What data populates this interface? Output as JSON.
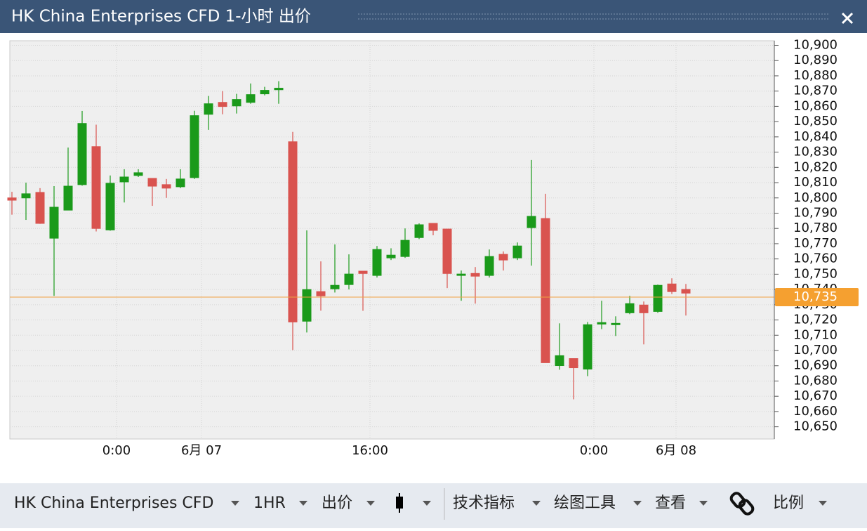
{
  "window": {
    "title": "HK China Enterprises CFD 1-小时 出价"
  },
  "chart_data": {
    "type": "candlestick",
    "open": [
      10800,
      10800,
      10803.6,
      10773.6,
      10792,
      10808.7,
      10833.6,
      10779,
      10810.5,
      10814.7,
      10812.8,
      10808.7,
      10807.3,
      10813.3,
      10854.8,
      10862.6,
      10860.3,
      10862.6,
      10868.2,
      10870.9,
      10836.8,
      10719.2,
      10738.6,
      10740.4,
      10743.2,
      10752,
      10749.2,
      10760.7,
      10761.6,
      10774,
      10783.3,
      10779.6,
      10749.2,
      10750.5,
      10749.2,
      10763,
      10760.7,
      10780.5,
      10786.5,
      10690.1,
      10694.7,
      10687.8,
      10717.3,
      10716.9,
      10724.7,
      10729.8,
      10725.6,
      10743.6,
      10740
    ],
    "high": [
      10804,
      10810,
      10806.4,
      10807.7,
      10833,
      10857,
      10848,
      10814.7,
      10818.8,
      10818.8,
      10813,
      10812.4,
      10818.8,
      10857.1,
      10866.8,
      10870,
      10868.2,
      10875,
      10872.8,
      10876.5,
      10843.3,
      10778.7,
      10758.4,
      10769.5,
      10763,
      10752,
      10768.5,
      10767,
      10780,
      10783.3,
      10783.3,
      10779.6,
      10752.4,
      10754.7,
      10766.2,
      10764.9,
      10770.8,
      10824.8,
      10802.7,
      10717.8,
      10694.7,
      10718.7,
      10732.6,
      10722.4,
      10735.8,
      10732.1,
      10743.2,
      10747.3,
      10743.6
    ],
    "low": [
      10789,
      10785.6,
      10783,
      10735.8,
      10792,
      10808,
      10778,
      10778.5,
      10797,
      10813.7,
      10794.8,
      10800,
      10806.4,
      10812.4,
      10844.6,
      10854.8,
      10855.3,
      10861.7,
      10867.2,
      10861.7,
      10700.3,
      10711.8,
      10726.1,
      10738,
      10740,
      10726,
      10747.8,
      10759.3,
      10760.7,
      10773,
      10775.5,
      10740.9,
      10732.6,
      10730.7,
      10747.8,
      10752.4,
      10759.3,
      10755.6,
      10692,
      10687.4,
      10668,
      10683.2,
      10714,
      10709.5,
      10723.8,
      10704,
      10724.7,
      10737,
      10722.9
    ],
    "close": [
      10798.5,
      10802.7,
      10783.3,
      10793.9,
      10807.7,
      10848.8,
      10780,
      10809.6,
      10813.7,
      10816.5,
      10807.7,
      10806.4,
      10812.4,
      10853.9,
      10861.7,
      10859.9,
      10864.5,
      10867.7,
      10870.5,
      10871.9,
      10718.7,
      10739.9,
      10735.8,
      10742.7,
      10750.1,
      10750.5,
      10766.2,
      10762.5,
      10772.2,
      10782.4,
      10778.7,
      10750.5,
      10750.1,
      10748.7,
      10761.6,
      10759.3,
      10768.5,
      10787.9,
      10692,
      10696.6,
      10688.7,
      10716.9,
      10718.3,
      10717.8,
      10730.7,
      10724.7,
      10742.7,
      10738.6,
      10737.6
    ],
    "up_color": "#1a9a1a",
    "down_color": "#d9534f",
    "xlim": [
      -0.15,
      54.3
    ],
    "xticks": [
      {
        "value": 7.45,
        "label": "0:00"
      },
      {
        "value": 13.5,
        "label": "6月 07"
      },
      {
        "value": 25.5,
        "label": "16:00"
      },
      {
        "value": 41.45,
        "label": "0:00"
      },
      {
        "value": 47.3,
        "label": "6月 08"
      }
    ],
    "ylim": [
      10642,
      10903
    ],
    "yticks": [
      {
        "value": 10650,
        "label": "10,650"
      },
      {
        "value": 10660,
        "label": "10,660"
      },
      {
        "value": 10670,
        "label": "10,670"
      },
      {
        "value": 10680,
        "label": "10,680"
      },
      {
        "value": 10690,
        "label": "10,690"
      },
      {
        "value": 10700,
        "label": "10,700"
      },
      {
        "value": 10710,
        "label": "10,710"
      },
      {
        "value": 10720,
        "label": "10,720"
      },
      {
        "value": 10730,
        "label": "10,730"
      },
      {
        "value": 10740,
        "label": "10,740"
      },
      {
        "value": 10750,
        "label": "10,750"
      },
      {
        "value": 10760,
        "label": "10,760"
      },
      {
        "value": 10770,
        "label": "10,770"
      },
      {
        "value": 10780,
        "label": "10,780"
      },
      {
        "value": 10790,
        "label": "10,790"
      },
      {
        "value": 10800,
        "label": "10,800"
      },
      {
        "value": 10810,
        "label": "10,810"
      },
      {
        "value": 10820,
        "label": "10,820"
      },
      {
        "value": 10830,
        "label": "10,830"
      },
      {
        "value": 10840,
        "label": "10,840"
      },
      {
        "value": 10850,
        "label": "10,850"
      },
      {
        "value": 10860,
        "label": "10,860"
      },
      {
        "value": 10870,
        "label": "10,870"
      },
      {
        "value": 10880,
        "label": "10,880"
      },
      {
        "value": 10890,
        "label": "10,890"
      },
      {
        "value": 10900,
        "label": "10,900"
      }
    ],
    "last_price": {
      "value": 10735,
      "label": "10,735"
    },
    "grid": true
  },
  "toolbar": {
    "instrument": "HK China Enterprises CFD",
    "interval": "1HR",
    "price_type": "出价",
    "indicators": "技术指标",
    "drawing_tools": "绘图工具",
    "view": "查看",
    "scale": "比例"
  }
}
